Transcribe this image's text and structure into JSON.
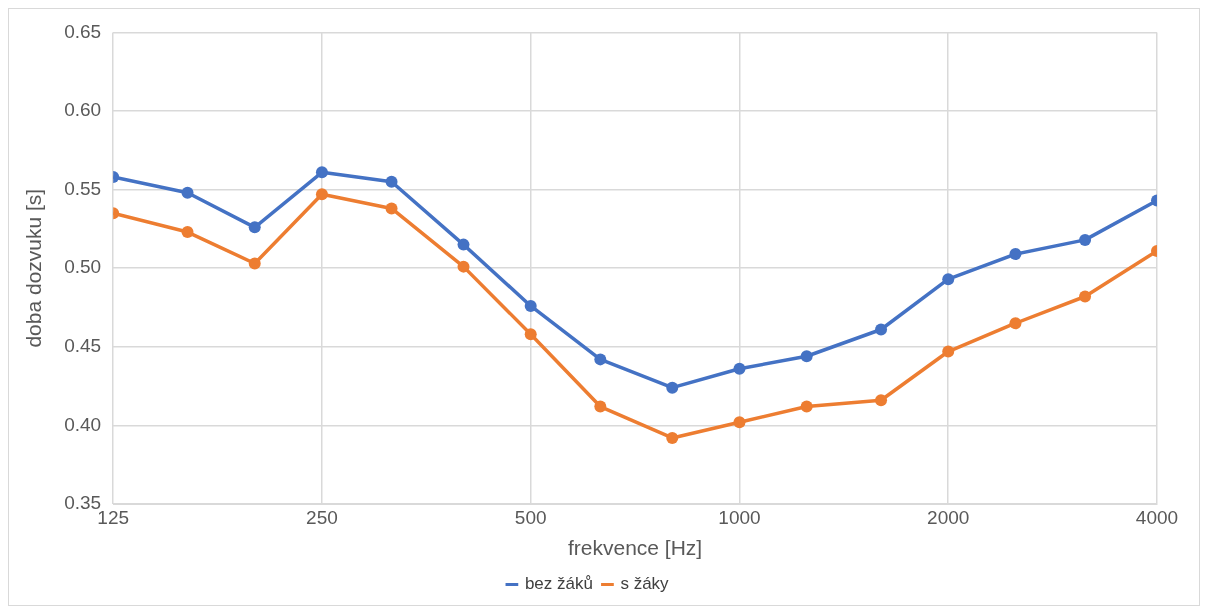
{
  "chart_data": {
    "type": "line",
    "xlabel": "frekvence [Hz]",
    "ylabel": "doba dozvuku [s]",
    "x": [
      125,
      160,
      200,
      250,
      315,
      400,
      500,
      630,
      800,
      1000,
      1250,
      1600,
      2000,
      2500,
      3150,
      4000
    ],
    "series": [
      {
        "name": "bez žáků",
        "color": "#4472c4",
        "values": [
          0.558,
          0.548,
          0.526,
          0.561,
          0.555,
          0.515,
          0.476,
          0.442,
          0.424,
          0.436,
          0.444,
          0.461,
          0.493,
          0.509,
          0.518,
          0.543
        ]
      },
      {
        "name": "s žáky",
        "color": "#ed7d31",
        "values": [
          0.535,
          0.523,
          0.503,
          0.547,
          0.538,
          0.501,
          0.458,
          0.412,
          0.392,
          0.402,
          0.412,
          0.416,
          0.447,
          0.465,
          0.482,
          0.511
        ]
      }
    ],
    "log": "x",
    "xlim": [
      125,
      4000
    ],
    "xticks": [
      125,
      250,
      500,
      1000,
      2000,
      4000
    ],
    "ylim": [
      0.35,
      0.65
    ],
    "yticks": [
      0.35,
      {
        "value": 0.4,
        "label": "0.40"
      },
      0.45,
      {
        "value": 0.5,
        "label": "0.50"
      },
      0.55,
      {
        "value": 0.6,
        "label": "0.60"
      },
      0.65
    ],
    "grid": true,
    "legend": "bottom",
    "marker": "circle",
    "line_style": "solid"
  }
}
